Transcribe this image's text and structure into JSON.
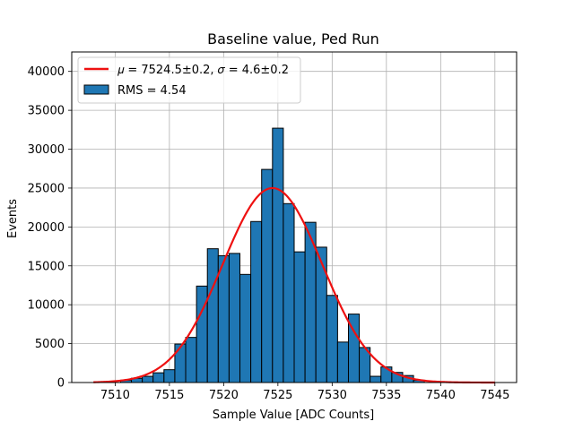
{
  "chart_data": {
    "type": "bar",
    "title": "Baseline value, Ped Run",
    "xlabel": "Sample Value [ADC Counts]",
    "ylabel": "Events",
    "xlim": [
      7506,
      7547
    ],
    "ylim": [
      0,
      42500
    ],
    "xticks": [
      7510,
      7515,
      7520,
      7525,
      7530,
      7535,
      7540,
      7545
    ],
    "yticks": [
      0,
      5000,
      10000,
      15000,
      20000,
      25000,
      30000,
      35000,
      40000
    ],
    "grid": true,
    "legend_position": "top-left",
    "bin_width": 1,
    "bins": [
      {
        "x": 7511,
        "y": 300
      },
      {
        "x": 7512,
        "y": 550
      },
      {
        "x": 7513,
        "y": 800
      },
      {
        "x": 7514,
        "y": 1250
      },
      {
        "x": 7515,
        "y": 1650
      },
      {
        "x": 7516,
        "y": 4950
      },
      {
        "x": 7517,
        "y": 5800
      },
      {
        "x": 7518,
        "y": 12400
      },
      {
        "x": 7519,
        "y": 17200
      },
      {
        "x": 7520,
        "y": 16300
      },
      {
        "x": 7521,
        "y": 16600
      },
      {
        "x": 7522,
        "y": 13900
      },
      {
        "x": 7523,
        "y": 20700
      },
      {
        "x": 7524,
        "y": 27400
      },
      {
        "x": 7525,
        "y": 32700
      },
      {
        "x": 7526,
        "y": 23000
      },
      {
        "x": 7527,
        "y": 16800
      },
      {
        "x": 7528,
        "y": 20600
      },
      {
        "x": 7529,
        "y": 17400
      },
      {
        "x": 7530,
        "y": 11200
      },
      {
        "x": 7531,
        "y": 5200
      },
      {
        "x": 7532,
        "y": 8800
      },
      {
        "x": 7533,
        "y": 4500
      },
      {
        "x": 7534,
        "y": 800
      },
      {
        "x": 7535,
        "y": 2000
      },
      {
        "x": 7536,
        "y": 1300
      },
      {
        "x": 7537,
        "y": 900
      },
      {
        "x": 7538,
        "y": 300
      }
    ],
    "fit": {
      "mu": 7524.5,
      "sigma": 4.6,
      "amplitude": 25000,
      "x_range": [
        7508,
        7545
      ],
      "color": "#ee1111"
    },
    "bar_color": "#1f77b4",
    "bar_edge_color": "#000000",
    "legend": [
      {
        "label_prefix": "𝜇 = 7524.5±0.2, ",
        "label_suffix": "𝜎 = 4.6±0.2",
        "style": "line",
        "color": "#ee1111"
      },
      {
        "label": "RMS = 4.54",
        "style": "patch",
        "color": "#1f77b4"
      }
    ]
  }
}
